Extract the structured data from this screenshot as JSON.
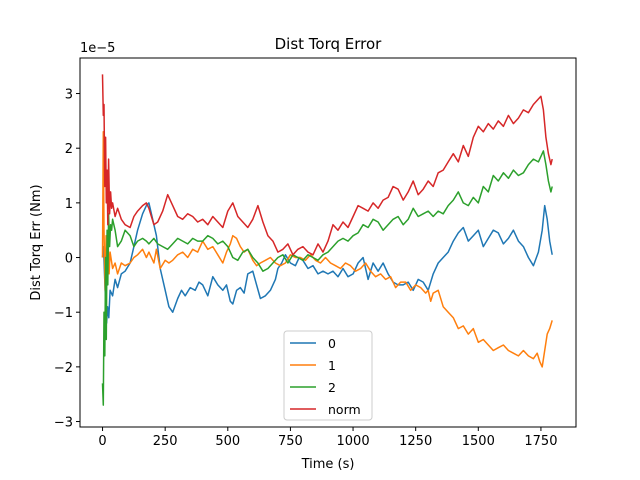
{
  "chart_data": {
    "type": "line",
    "title": "Dist Torq Error",
    "xlabel": "Time (s)",
    "ylabel": "Dist Torq Err (Nm)",
    "y_scale_label": "1e−5",
    "xlim": [
      -90,
      1890
    ],
    "ylim": [
      -3.1,
      3.65
    ],
    "xticks": [
      0,
      250,
      500,
      750,
      1000,
      1250,
      1500,
      1750
    ],
    "xtick_labels": [
      "0",
      "250",
      "500",
      "750",
      "1000",
      "1250",
      "1500",
      "1750"
    ],
    "yticks": [
      -3,
      -2,
      -1,
      0,
      1,
      2,
      3
    ],
    "ytick_labels": [
      "−3",
      "−2",
      "−1",
      "0",
      "1",
      "2",
      "3"
    ],
    "grid": false,
    "legend_position": "lower center",
    "series": [
      {
        "name": "0",
        "color": "#1f77b4",
        "x": [
          0,
          4,
          8,
          12,
          16,
          20,
          25,
          30,
          40,
          50,
          60,
          75,
          90,
          110,
          125,
          140,
          160,
          175,
          185,
          195,
          205,
          215,
          230,
          250,
          265,
          280,
          300,
          315,
          330,
          350,
          370,
          385,
          400,
          420,
          440,
          460,
          480,
          495,
          510,
          520,
          535,
          550,
          565,
          580,
          600,
          615,
          630,
          650,
          670,
          690,
          700,
          715,
          730,
          750,
          770,
          785,
          800,
          820,
          840,
          860,
          880,
          900,
          920,
          940,
          960,
          980,
          1000,
          1020,
          1040,
          1060,
          1080,
          1100,
          1120,
          1140,
          1160,
          1180,
          1200,
          1220,
          1240,
          1260,
          1280,
          1300,
          1320,
          1340,
          1360,
          1380,
          1400,
          1420,
          1440,
          1460,
          1480,
          1500,
          1520,
          1540,
          1560,
          1580,
          1600,
          1620,
          1640,
          1660,
          1680,
          1700,
          1720,
          1740,
          1755,
          1765,
          1775,
          1785,
          1795
        ],
        "y": [
          0.0,
          0.2,
          -0.3,
          -0.8,
          -1.2,
          -0.9,
          -1.1,
          -0.6,
          -0.7,
          -0.4,
          -0.55,
          -0.3,
          -0.25,
          -0.1,
          0.2,
          0.5,
          0.8,
          0.95,
          1.0,
          0.8,
          0.6,
          0.4,
          -0.2,
          -0.6,
          -0.9,
          -1.0,
          -0.75,
          -0.6,
          -0.7,
          -0.55,
          -0.6,
          -0.45,
          -0.5,
          -0.7,
          -0.35,
          -0.5,
          -0.6,
          -0.5,
          -0.8,
          -0.85,
          -0.6,
          -0.55,
          -0.65,
          -0.3,
          -0.25,
          -0.5,
          -0.75,
          -0.7,
          -0.6,
          -0.4,
          -0.2,
          -0.1,
          0.05,
          -0.1,
          -0.15,
          0.0,
          -0.05,
          -0.2,
          -0.15,
          -0.3,
          -0.25,
          -0.3,
          -0.25,
          -0.35,
          -0.2,
          -0.35,
          -0.3,
          -0.1,
          0.0,
          -0.4,
          -0.1,
          -0.25,
          -0.1,
          -0.3,
          -0.45,
          -0.5,
          -0.5,
          -0.45,
          -0.6,
          -0.4,
          -0.45,
          -0.6,
          -0.3,
          -0.1,
          0.0,
          0.1,
          0.3,
          0.45,
          0.55,
          0.3,
          0.4,
          0.5,
          0.2,
          0.35,
          0.5,
          0.45,
          0.25,
          0.35,
          0.5,
          0.3,
          0.2,
          0.0,
          -0.15,
          0.1,
          0.5,
          0.95,
          0.7,
          0.3,
          0.05
        ]
      },
      {
        "name": "1",
        "color": "#ff7f0e",
        "x": [
          0,
          3,
          6,
          10,
          14,
          18,
          22,
          26,
          30,
          40,
          50,
          60,
          75,
          90,
          110,
          125,
          140,
          160,
          175,
          185,
          195,
          205,
          215,
          230,
          250,
          265,
          280,
          300,
          320,
          340,
          360,
          380,
          400,
          420,
          440,
          460,
          480,
          495,
          510,
          520,
          535,
          550,
          565,
          580,
          600,
          615,
          630,
          650,
          670,
          690,
          710,
          730,
          750,
          770,
          790,
          810,
          830,
          850,
          870,
          890,
          910,
          930,
          950,
          970,
          990,
          1010,
          1030,
          1050,
          1070,
          1090,
          1110,
          1130,
          1150,
          1170,
          1190,
          1210,
          1230,
          1250,
          1270,
          1290,
          1300,
          1310,
          1320,
          1340,
          1360,
          1380,
          1400,
          1420,
          1440,
          1460,
          1480,
          1500,
          1520,
          1540,
          1560,
          1580,
          1600,
          1620,
          1640,
          1660,
          1680,
          1700,
          1720,
          1735,
          1745,
          1755,
          1765,
          1775,
          1785,
          1795
        ],
        "y": [
          0.0,
          2.3,
          0.5,
          -0.6,
          0.4,
          -0.1,
          0.3,
          -0.3,
          0.1,
          -0.2,
          -0.1,
          -0.3,
          -0.1,
          -0.15,
          -0.1,
          0.0,
          0.05,
          0.15,
          0.0,
          0.1,
          0.0,
          -0.1,
          0.15,
          -0.2,
          -0.05,
          -0.1,
          -0.05,
          0.05,
          0.1,
          0.0,
          0.15,
          0.1,
          0.3,
          0.15,
          0.2,
          0.05,
          -0.1,
          0.1,
          0.25,
          0.4,
          0.35,
          0.2,
          0.1,
          0.15,
          -0.05,
          -0.15,
          -0.1,
          -0.05,
          0.0,
          -0.1,
          -0.15,
          -0.1,
          0.05,
          0.0,
          0.0,
          -0.05,
          0.05,
          -0.05,
          -0.1,
          0.0,
          -0.1,
          -0.15,
          -0.2,
          -0.1,
          -0.15,
          -0.25,
          -0.2,
          -0.1,
          -0.25,
          -0.35,
          -0.3,
          -0.4,
          -0.35,
          -0.55,
          -0.45,
          -0.45,
          -0.6,
          -0.5,
          -0.55,
          -0.65,
          -0.6,
          -0.8,
          -0.65,
          -0.6,
          -0.9,
          -1.0,
          -1.1,
          -1.3,
          -1.25,
          -1.4,
          -1.3,
          -1.55,
          -1.5,
          -1.6,
          -1.7,
          -1.65,
          -1.6,
          -1.7,
          -1.75,
          -1.8,
          -1.7,
          -1.8,
          -1.85,
          -1.75,
          -1.9,
          -2.0,
          -1.7,
          -1.4,
          -1.3,
          -1.15
        ]
      },
      {
        "name": "2",
        "color": "#2ca02c",
        "x": [
          0,
          3,
          6,
          9,
          12,
          15,
          18,
          21,
          24,
          28,
          32,
          36,
          40,
          50,
          60,
          75,
          90,
          110,
          125,
          140,
          160,
          175,
          185,
          195,
          205,
          220,
          240,
          260,
          280,
          300,
          320,
          340,
          360,
          380,
          400,
          420,
          440,
          460,
          480,
          500,
          520,
          540,
          560,
          580,
          600,
          620,
          640,
          660,
          680,
          700,
          720,
          740,
          760,
          780,
          800,
          820,
          840,
          860,
          880,
          900,
          920,
          940,
          960,
          980,
          1000,
          1020,
          1040,
          1060,
          1080,
          1100,
          1120,
          1140,
          1160,
          1180,
          1200,
          1220,
          1240,
          1260,
          1280,
          1300,
          1320,
          1340,
          1360,
          1380,
          1400,
          1420,
          1440,
          1460,
          1480,
          1500,
          1520,
          1540,
          1560,
          1580,
          1600,
          1620,
          1640,
          1660,
          1680,
          1700,
          1720,
          1740,
          1750,
          1760,
          1770,
          1780,
          1790,
          1795
        ],
        "y": [
          -2.3,
          -2.7,
          -1.0,
          -1.8,
          0.0,
          -1.5,
          0.5,
          -0.5,
          0.8,
          0.2,
          0.6,
          0.5,
          0.7,
          0.5,
          0.2,
          0.3,
          0.5,
          0.4,
          0.2,
          0.3,
          0.35,
          0.3,
          0.25,
          0.3,
          0.35,
          0.25,
          0.2,
          0.15,
          0.25,
          0.35,
          0.3,
          0.25,
          0.35,
          0.3,
          0.3,
          0.4,
          0.35,
          0.25,
          0.3,
          0.2,
          0.0,
          -0.05,
          0.1,
          0.15,
          0.0,
          -0.1,
          -0.25,
          -0.2,
          -0.1,
          0.0,
          0.05,
          -0.1,
          0.05,
          0.0,
          -0.05,
          0.05,
          0.0,
          -0.05,
          0.05,
          0.1,
          0.2,
          0.3,
          0.35,
          0.3,
          0.4,
          0.45,
          0.6,
          0.55,
          0.7,
          0.65,
          0.5,
          0.6,
          0.7,
          0.75,
          0.6,
          0.7,
          0.9,
          0.75,
          0.8,
          0.85,
          0.75,
          0.85,
          0.8,
          0.95,
          1.05,
          1.2,
          1.0,
          0.95,
          1.1,
          1.0,
          1.3,
          1.2,
          1.5,
          1.4,
          1.55,
          1.45,
          1.6,
          1.5,
          1.55,
          1.7,
          1.8,
          1.75,
          1.85,
          1.95,
          1.7,
          1.4,
          1.2,
          1.3
        ]
      },
      {
        "name": "norm",
        "color": "#d62728",
        "x": [
          0,
          3,
          6,
          9,
          12,
          15,
          18,
          21,
          24,
          28,
          32,
          36,
          40,
          50,
          60,
          75,
          90,
          110,
          125,
          140,
          160,
          175,
          185,
          195,
          205,
          220,
          240,
          260,
          280,
          300,
          320,
          340,
          360,
          380,
          400,
          420,
          440,
          460,
          480,
          500,
          520,
          540,
          560,
          580,
          600,
          620,
          640,
          660,
          680,
          700,
          720,
          740,
          760,
          780,
          800,
          820,
          840,
          860,
          880,
          900,
          920,
          940,
          960,
          980,
          1000,
          1020,
          1040,
          1060,
          1080,
          1100,
          1120,
          1140,
          1160,
          1180,
          1200,
          1220,
          1240,
          1260,
          1280,
          1300,
          1320,
          1340,
          1360,
          1380,
          1400,
          1420,
          1440,
          1460,
          1480,
          1500,
          1520,
          1540,
          1560,
          1580,
          1600,
          1620,
          1640,
          1660,
          1680,
          1700,
          1720,
          1740,
          1750,
          1760,
          1770,
          1780,
          1790,
          1795
        ],
        "y": [
          3.35,
          2.6,
          2.8,
          1.3,
          2.2,
          1.0,
          1.6,
          0.6,
          1.8,
          0.8,
          1.2,
          0.9,
          1.0,
          0.75,
          0.9,
          0.7,
          0.6,
          0.55,
          0.75,
          0.85,
          0.95,
          1.0,
          0.9,
          0.75,
          0.6,
          0.65,
          0.85,
          1.15,
          0.95,
          0.75,
          0.7,
          0.8,
          0.75,
          0.65,
          0.7,
          0.6,
          0.75,
          0.65,
          0.55,
          0.85,
          1.0,
          0.75,
          0.65,
          0.55,
          0.7,
          0.95,
          0.65,
          0.4,
          0.3,
          0.1,
          0.15,
          0.25,
          0.05,
          0.15,
          0.2,
          0.1,
          0.05,
          0.25,
          0.1,
          0.3,
          0.6,
          0.5,
          0.65,
          0.55,
          0.75,
          0.95,
          0.9,
          0.85,
          1.0,
          0.9,
          1.05,
          1.1,
          1.3,
          1.25,
          1.05,
          1.2,
          1.4,
          1.15,
          1.25,
          1.4,
          1.3,
          1.55,
          1.6,
          1.75,
          1.9,
          1.75,
          2.05,
          1.85,
          2.2,
          2.4,
          2.3,
          2.45,
          2.35,
          2.5,
          2.4,
          2.6,
          2.45,
          2.55,
          2.7,
          2.65,
          2.8,
          2.9,
          2.95,
          2.7,
          2.2,
          1.9,
          1.7,
          1.8
        ]
      }
    ]
  }
}
